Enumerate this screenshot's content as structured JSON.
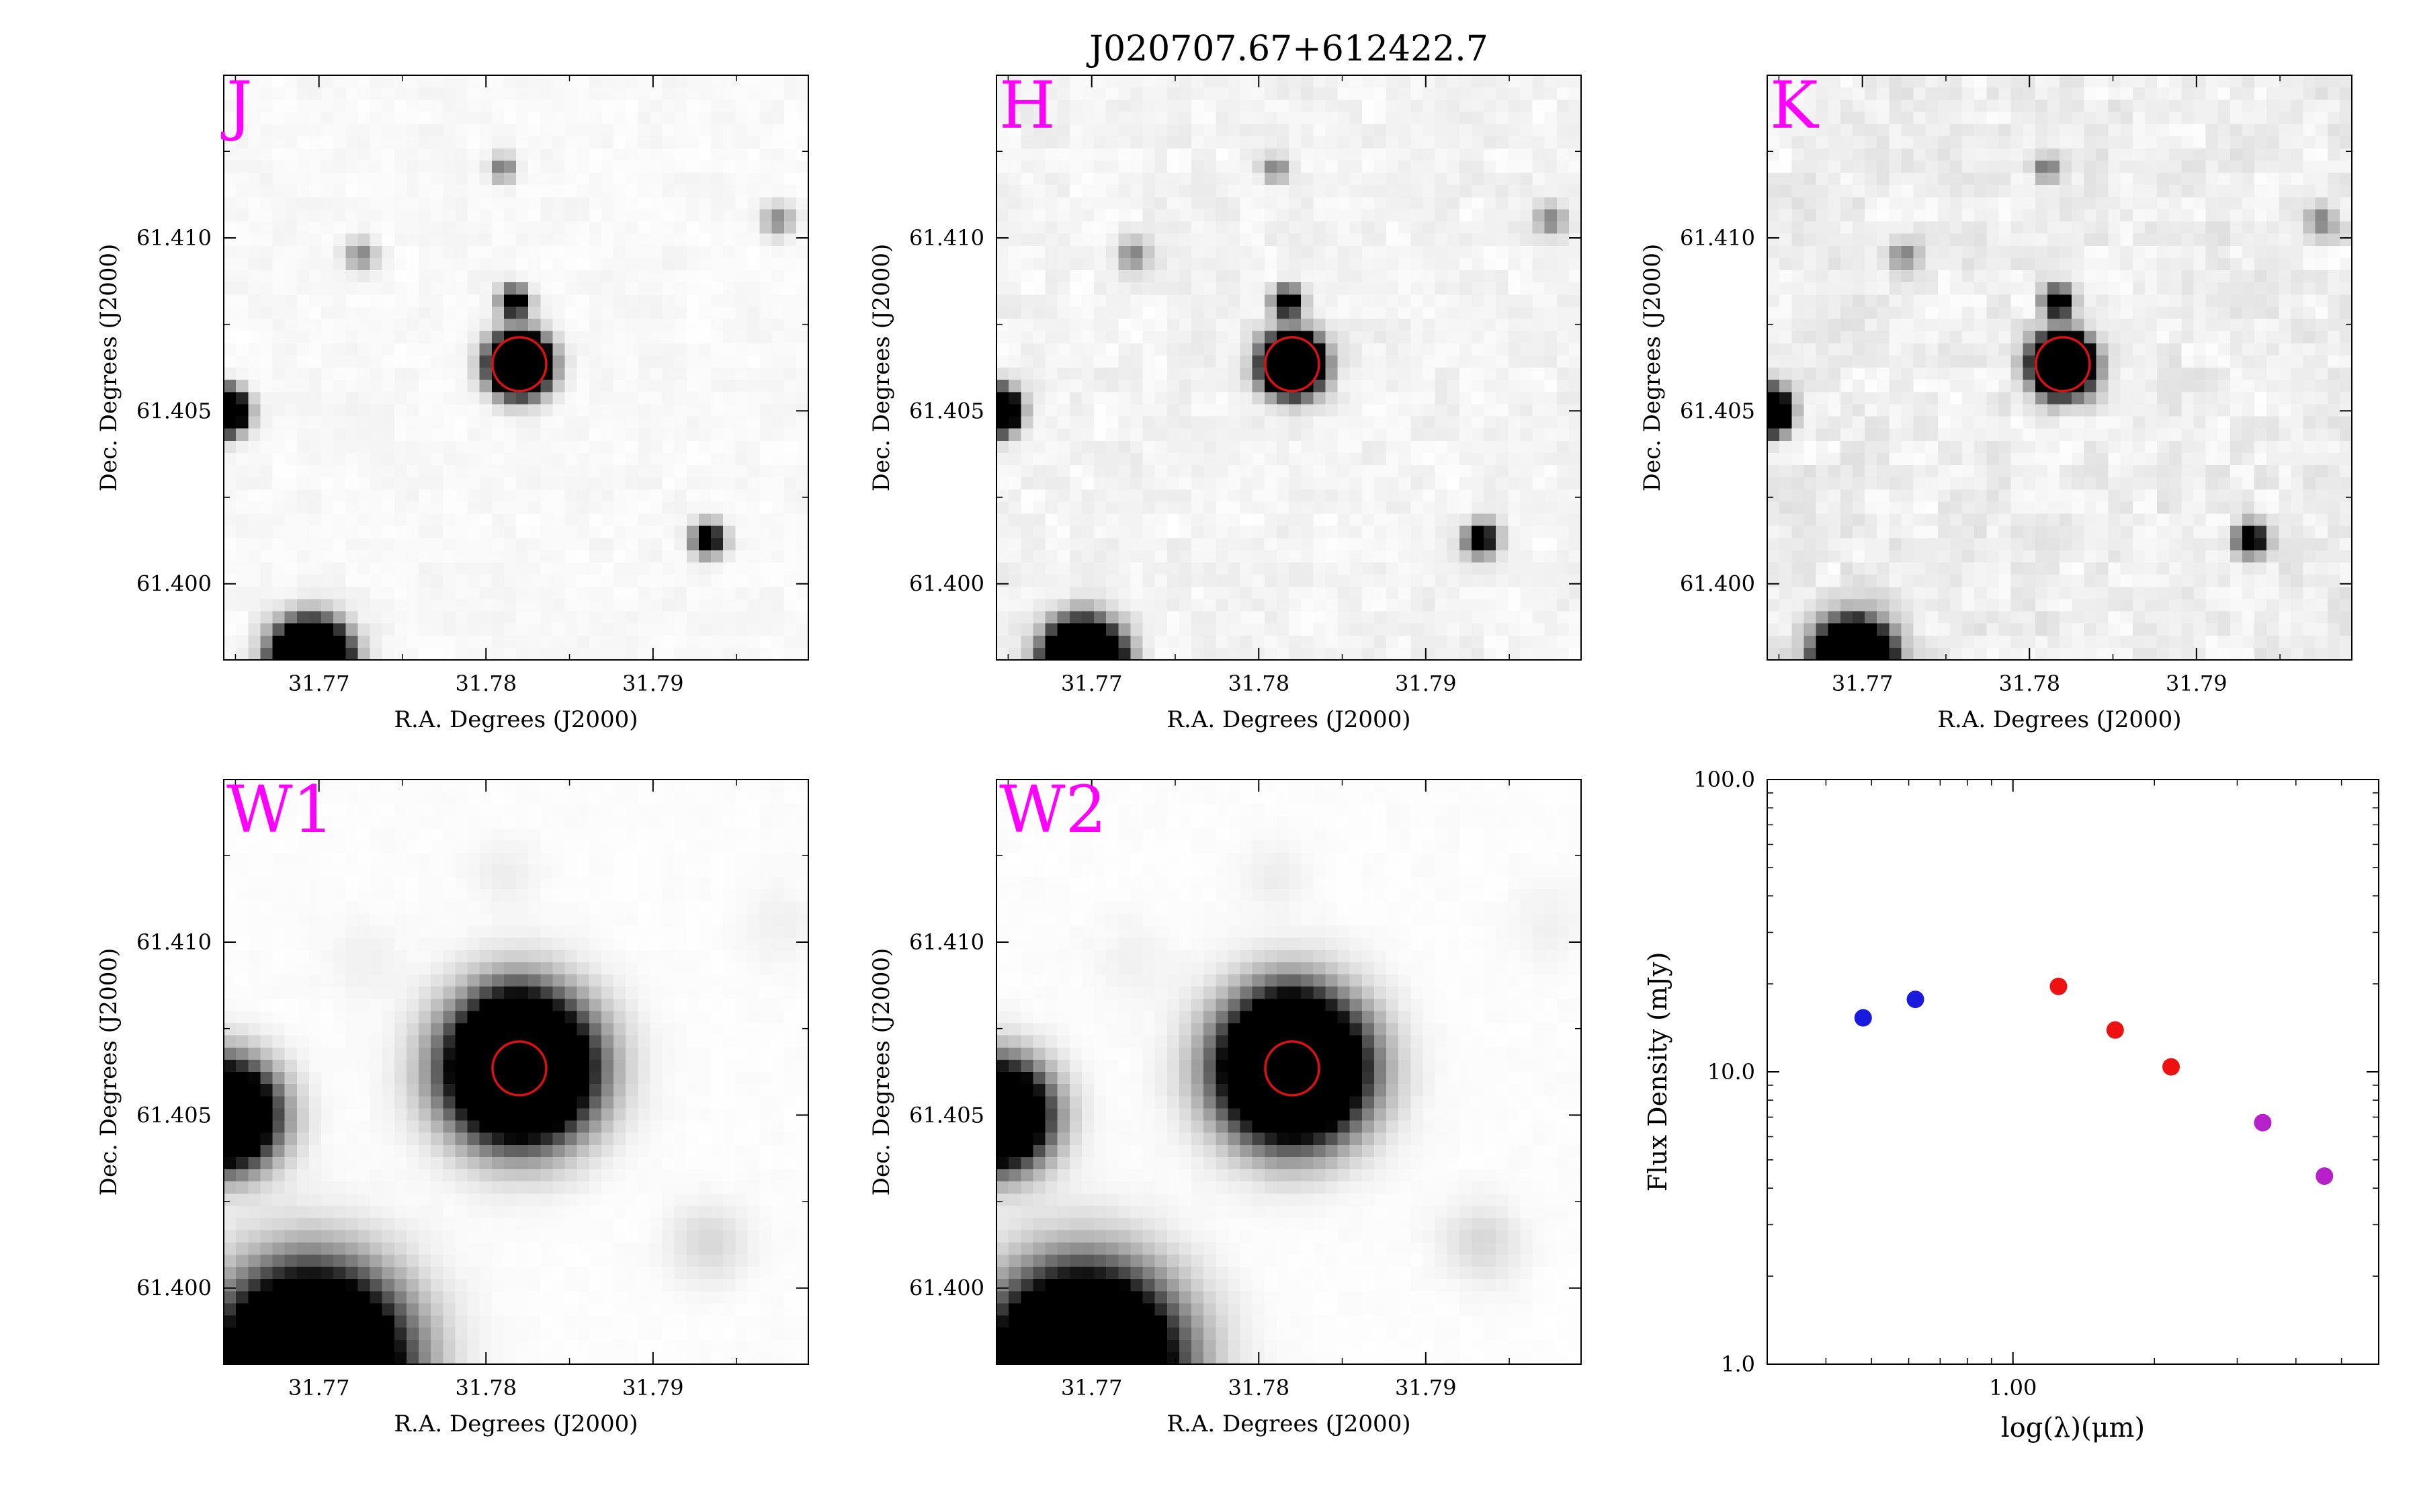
{
  "figure": {
    "title": "J020707.67+612422.7"
  },
  "colors": {
    "band_label": "#ff00ff",
    "aperture": "#dd1111",
    "optical_points": "#1a1adf",
    "nir_points": "#ee1111",
    "mir_points": "#b520c8"
  },
  "image_axes": {
    "xlabel": "R.A. Degrees (J2000)",
    "ylabel": "Dec. Degrees (J2000)",
    "xticks": [
      "31.77",
      "31.78",
      "31.79"
    ],
    "yticks": [
      "61.410",
      "61.405",
      "61.400"
    ]
  },
  "panels": [
    {
      "band": "J",
      "style": "nir",
      "noise": 0.05,
      "halo": 1.0,
      "target_flux": 1.0
    },
    {
      "band": "H",
      "style": "nir",
      "noise": 0.09,
      "halo": 1.0,
      "target_flux": 1.0
    },
    {
      "band": "K",
      "style": "nir",
      "noise": 0.13,
      "halo": 1.0,
      "target_flux": 1.0
    },
    {
      "band": "W1",
      "style": "mir",
      "noise": 0.02,
      "halo": 2.6,
      "target_flux": 1.0
    },
    {
      "band": "W2",
      "style": "mir",
      "noise": 0.02,
      "halo": 2.6,
      "target_flux": 1.0
    }
  ],
  "chart_data": {
    "type": "scatter",
    "ylabel": "Flux Density (mJy)",
    "xlabel": "log(λ)(μm)",
    "xscale": "log",
    "yscale": "log",
    "xlim": [
      0.3,
      6.0
    ],
    "ylim": [
      1.0,
      100.0
    ],
    "yticks": [
      "1.0",
      "10.0",
      "100.0"
    ],
    "xticks": [
      "1.00"
    ],
    "series": [
      {
        "color_key": "optical_points",
        "x": [
          0.48,
          0.62
        ],
        "y": [
          15.3,
          17.7
        ]
      },
      {
        "color_key": "nir_points",
        "x": [
          1.25,
          1.65,
          2.17
        ],
        "y": [
          19.6,
          13.9,
          10.4
        ]
      },
      {
        "color_key": "mir_points",
        "x": [
          3.4,
          4.6
        ],
        "y": [
          6.7,
          4.4
        ]
      }
    ]
  }
}
